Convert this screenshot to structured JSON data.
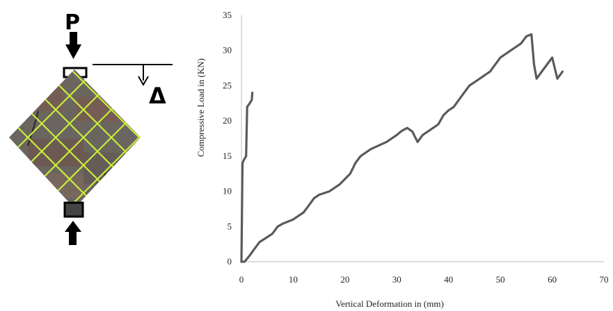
{
  "diagram": {
    "load_label": "P",
    "deformation_label": "Δ"
  },
  "chart_data": {
    "type": "line",
    "xlabel": "Vertical Deformation in (mm)",
    "ylabel": "Compressive Load in (KN)",
    "xlim": [
      0,
      70
    ],
    "ylim": [
      0,
      35
    ],
    "xticks": [
      "0",
      "10",
      "20",
      "30",
      "40",
      "50",
      "60",
      "70"
    ],
    "yticks": [
      "0",
      "5",
      "10",
      "15",
      "20",
      "25",
      "30",
      "35"
    ],
    "grid": false,
    "line_color": "#5a5a5a",
    "series": [
      {
        "x": [
          0,
          0.2,
          0.5,
          0.9,
          1.1,
          1.6,
          2.0,
          2.1
        ],
        "y": [
          0,
          14,
          14.5,
          15,
          22,
          22.5,
          23,
          24
        ]
      },
      {
        "x": [
          0,
          0.6,
          1.5,
          2.5,
          3.5,
          5,
          6,
          7,
          8,
          10,
          12,
          13,
          14,
          15,
          17,
          19,
          21,
          22,
          23,
          25,
          28,
          30,
          31,
          32,
          33,
          34,
          35,
          36,
          37,
          38,
          39,
          40,
          41,
          42,
          43,
          44,
          46,
          48,
          50,
          52,
          54,
          55,
          56,
          56.5,
          57,
          58,
          59,
          60,
          61,
          62
        ],
        "y": [
          0,
          0,
          0.8,
          1.8,
          2.8,
          3.5,
          4,
          5,
          5.4,
          6,
          7,
          8,
          9,
          9.5,
          10,
          11,
          12.5,
          14,
          15,
          16,
          17,
          18,
          18.6,
          19,
          18.5,
          17,
          18,
          18.5,
          19,
          19.5,
          20.8,
          21.5,
          22,
          23,
          24,
          25,
          26,
          27,
          29,
          30,
          31,
          32,
          32.3,
          28,
          26,
          27,
          28,
          29,
          26,
          27
        ]
      }
    ]
  }
}
